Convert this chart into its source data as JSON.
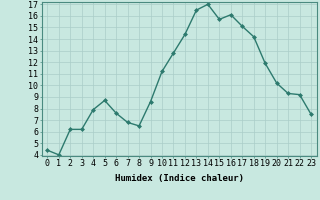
{
  "x": [
    0,
    1,
    2,
    3,
    4,
    5,
    6,
    7,
    8,
    9,
    10,
    11,
    12,
    13,
    14,
    15,
    16,
    17,
    18,
    19,
    20,
    21,
    22,
    23
  ],
  "y": [
    4.4,
    4.0,
    6.2,
    6.2,
    7.9,
    8.7,
    7.6,
    6.8,
    6.5,
    8.6,
    11.2,
    12.8,
    14.4,
    16.5,
    17.0,
    15.7,
    16.1,
    15.1,
    14.2,
    11.9,
    10.2,
    9.3,
    9.2,
    7.5
  ],
  "xlabel": "Humidex (Indice chaleur)",
  "ylim": [
    4,
    17
  ],
  "xlim": [
    -0.5,
    23.5
  ],
  "yticks": [
    4,
    5,
    6,
    7,
    8,
    9,
    10,
    11,
    12,
    13,
    14,
    15,
    16,
    17
  ],
  "xticks": [
    0,
    1,
    2,
    3,
    4,
    5,
    6,
    7,
    8,
    9,
    10,
    11,
    12,
    13,
    14,
    15,
    16,
    17,
    18,
    19,
    20,
    21,
    22,
    23
  ],
  "line_color": "#2d7a6e",
  "marker_color": "#2d7a6e",
  "bg_color": "#c8e8e0",
  "grid_color": "#aacec8",
  "axes_bg": "#c8e8e0",
  "xlabel_fontsize": 6.5,
  "tick_fontsize": 6.0,
  "line_width": 1.0,
  "marker_size": 2.0
}
